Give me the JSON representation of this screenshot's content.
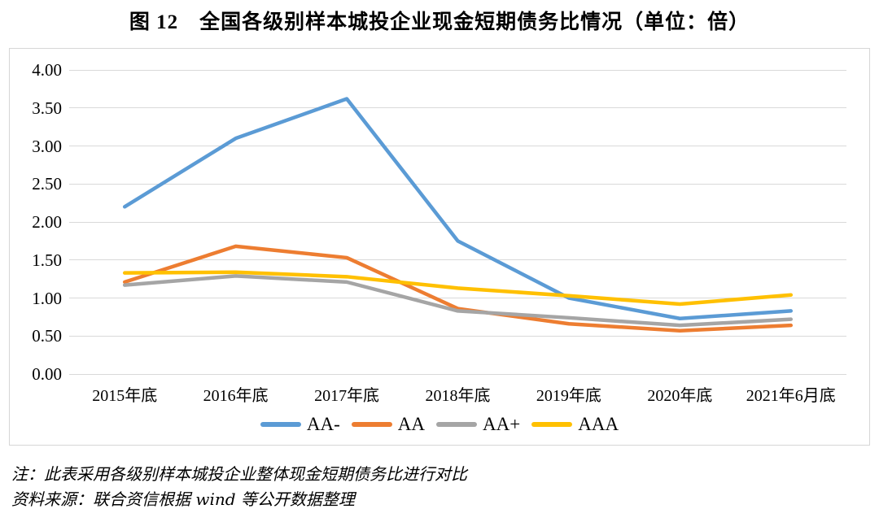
{
  "title": "图 12　全国各级别样本城投企业现金短期债务比情况（单位：倍）",
  "chart_data": {
    "type": "line",
    "title": "图 12　全国各级别样本城投企业现金短期债务比情况（单位：倍）",
    "unit": "倍",
    "categories": [
      "2015年底",
      "2016年底",
      "2017年底",
      "2018年底",
      "2019年底",
      "2020年底",
      "2021年6月底"
    ],
    "series": [
      {
        "name": "AA-",
        "color": "#5B9BD5",
        "values": [
          2.2,
          3.1,
          3.62,
          1.75,
          1.0,
          0.73,
          0.83
        ]
      },
      {
        "name": "AA",
        "color": "#ED7D31",
        "values": [
          1.21,
          1.68,
          1.53,
          0.86,
          0.66,
          0.57,
          0.64
        ]
      },
      {
        "name": "AA+",
        "color": "#A5A5A5",
        "values": [
          1.17,
          1.29,
          1.21,
          0.83,
          0.74,
          0.64,
          0.72
        ]
      },
      {
        "name": "AAA",
        "color": "#FFC000",
        "values": [
          1.33,
          1.34,
          1.28,
          1.13,
          1.03,
          0.92,
          1.04
        ]
      }
    ],
    "ylim": [
      0,
      4
    ],
    "ytick_labels": [
      "4.00",
      "3.50",
      "3.00",
      "2.50",
      "2.00",
      "1.50",
      "1.00",
      "0.50",
      "0.00"
    ],
    "grid": true,
    "gridline_color": "#d9d9d9",
    "legend_position": "bottom",
    "legend": [
      "AA-",
      "AA",
      "AA+",
      "AAA"
    ]
  },
  "footnotes": {
    "note": "注：此表采用各级别样本城投企业整体现金短期债务比进行对比",
    "source": "资料来源：联合资信根据 wind 等公开数据整理"
  }
}
